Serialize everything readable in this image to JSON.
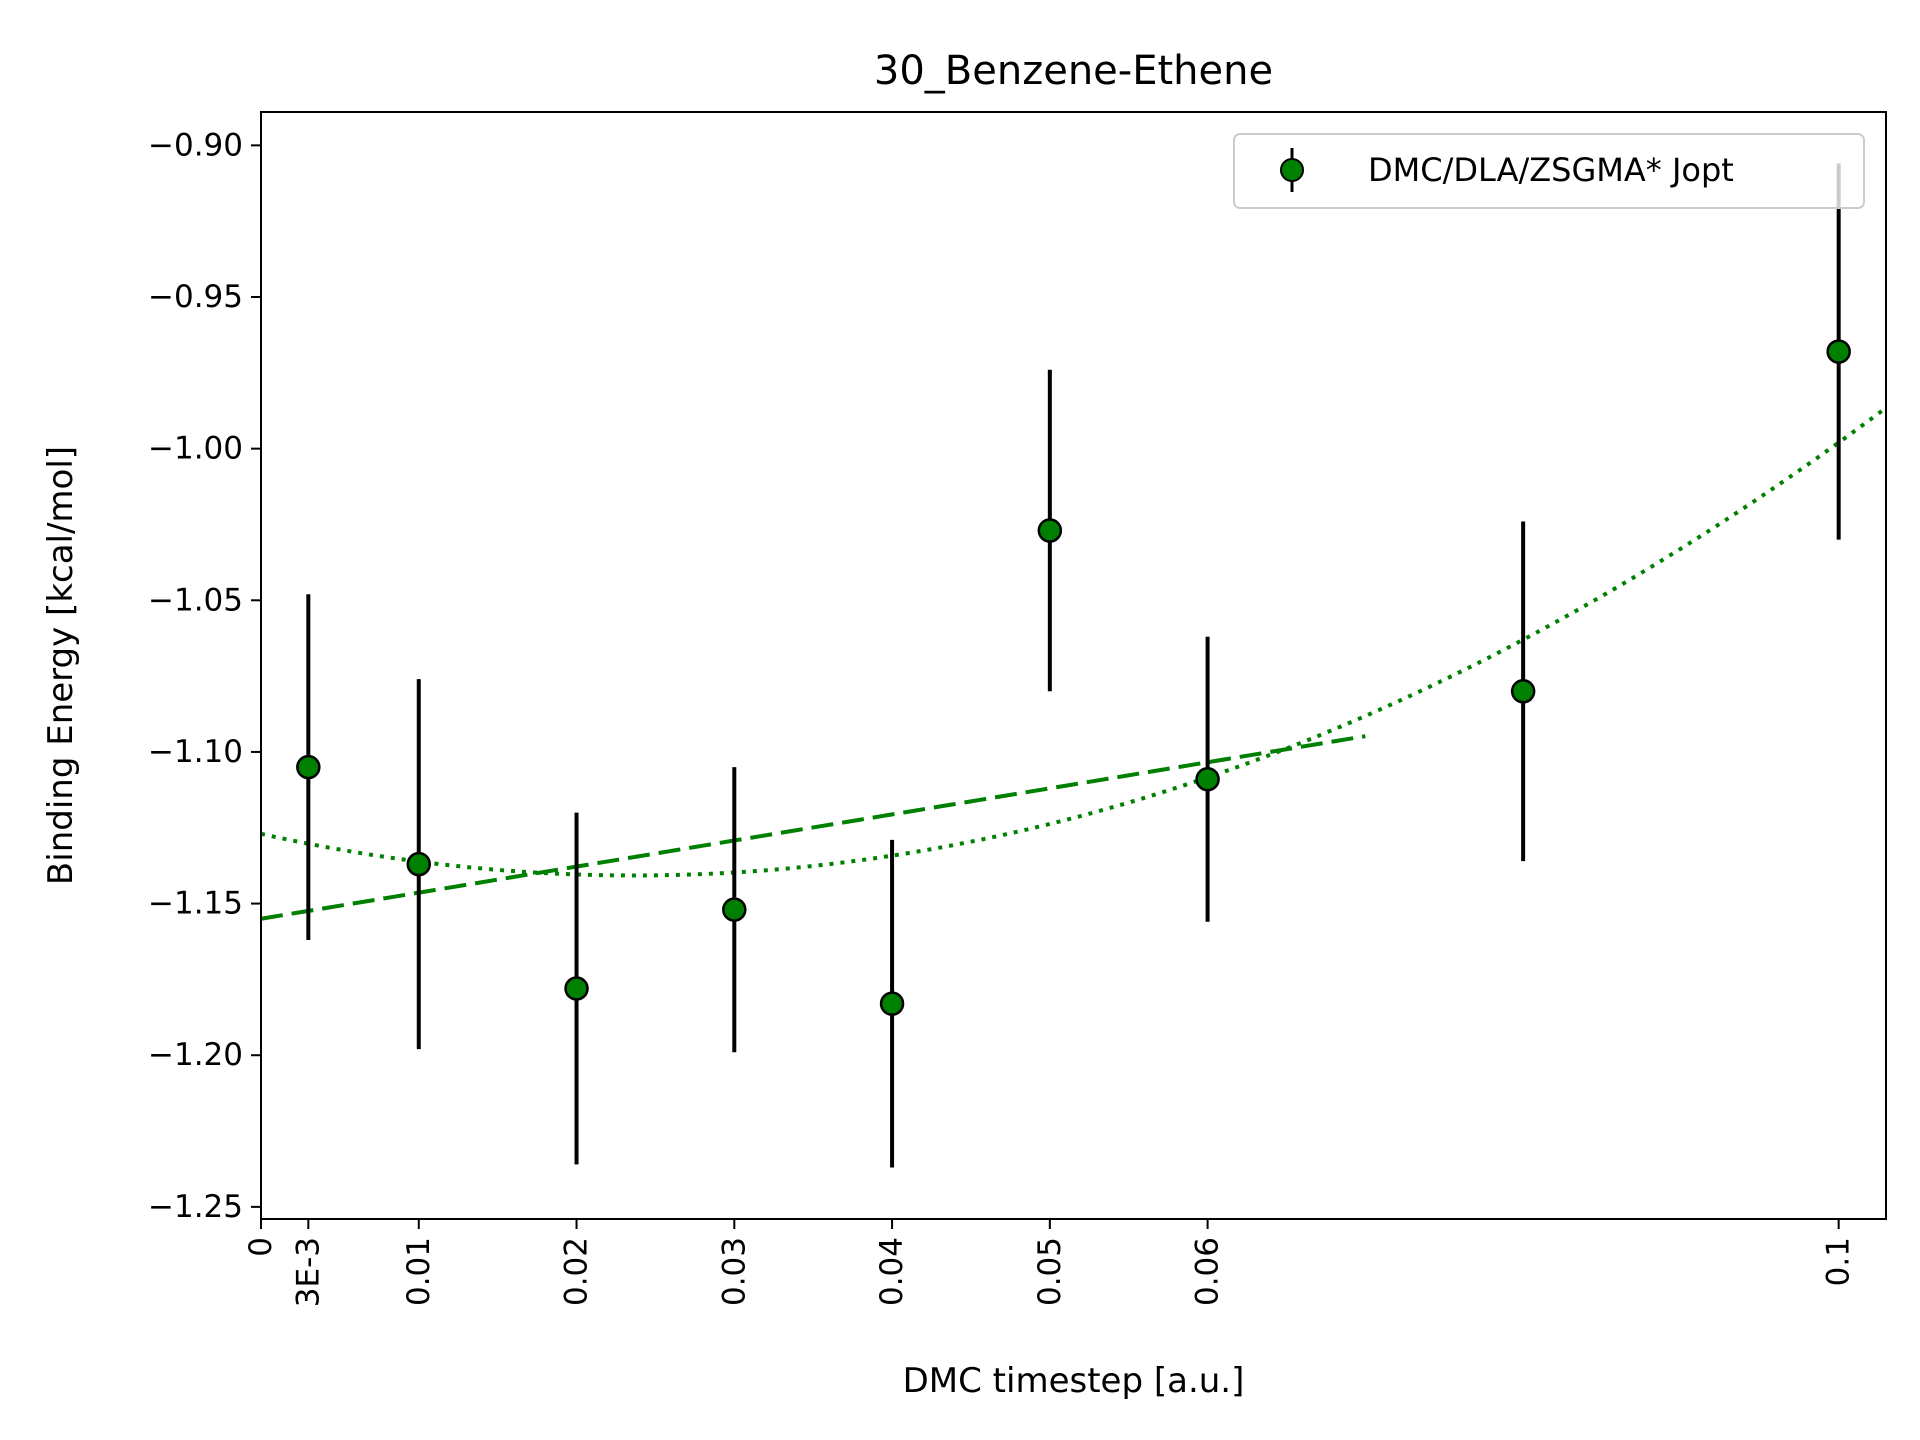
{
  "chart_data": {
    "type": "scatter",
    "title": "30_Benzene-Ethene",
    "xlabel": "DMC timestep [a.u.]",
    "ylabel": "Binding Energy [kcal/mol]",
    "xlim": [
      0,
      0.103
    ],
    "ylim": [
      -1.254,
      -0.889
    ],
    "grid": false,
    "legend_position": "top-right",
    "x_ticks": [
      {
        "value": 0,
        "label": "0"
      },
      {
        "value": 0.003,
        "label": "3E-3"
      },
      {
        "value": 0.01,
        "label": "0.01"
      },
      {
        "value": 0.02,
        "label": "0.02"
      },
      {
        "value": 0.03,
        "label": "0.03"
      },
      {
        "value": 0.04,
        "label": "0.04"
      },
      {
        "value": 0.05,
        "label": "0.05"
      },
      {
        "value": 0.06,
        "label": "0.06"
      },
      {
        "value": 0.1,
        "label": "0.1"
      }
    ],
    "y_ticks": [
      {
        "value": -0.9,
        "label": "−0.90"
      },
      {
        "value": -0.95,
        "label": "−0.95"
      },
      {
        "value": -1.0,
        "label": "−1.00"
      },
      {
        "value": -1.05,
        "label": "−1.05"
      },
      {
        "value": -1.1,
        "label": "−1.10"
      },
      {
        "value": -1.15,
        "label": "−1.15"
      },
      {
        "value": -1.2,
        "label": "−1.20"
      },
      {
        "value": -1.25,
        "label": "−1.25"
      }
    ],
    "series": [
      {
        "name": "DMC/DLA/ZSGMA* Jopt",
        "color": "#008000",
        "errorbar_color": "#000000",
        "points": [
          {
            "x": 0.003,
            "y": -1.105,
            "err": 0.057
          },
          {
            "x": 0.01,
            "y": -1.137,
            "err": 0.061
          },
          {
            "x": 0.02,
            "y": -1.178,
            "err": 0.058
          },
          {
            "x": 0.03,
            "y": -1.152,
            "err": 0.047
          },
          {
            "x": 0.04,
            "y": -1.183,
            "err": 0.054
          },
          {
            "x": 0.05,
            "y": -1.027,
            "err": 0.053
          },
          {
            "x": 0.06,
            "y": -1.109,
            "err": 0.047
          },
          {
            "x": 0.08,
            "y": -1.08,
            "err": 0.056
          },
          {
            "x": 0.1,
            "y": -0.968,
            "err": 0.062
          }
        ]
      }
    ],
    "fits": [
      {
        "style": "dashed",
        "kind": "linear",
        "color": "#008000",
        "intercept": -1.155,
        "slope": 0.86,
        "x_range": [
          0,
          0.07
        ]
      },
      {
        "style": "dotted",
        "kind": "quadratic",
        "color": "#008000",
        "a": 24.5,
        "b": -1.16,
        "c": -1.127,
        "x_range": [
          0,
          0.103
        ]
      }
    ]
  }
}
